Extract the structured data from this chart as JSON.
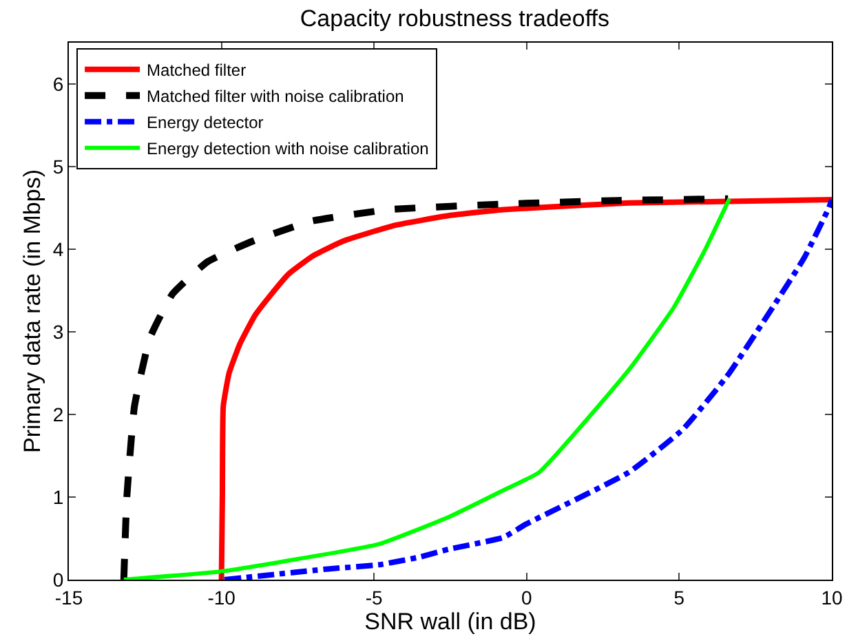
{
  "chart_data": {
    "type": "line",
    "title": "Capacity robustness tradeoffs",
    "xlabel": "SNR wall (in dB)",
    "ylabel": "Primary data rate (in Mbps)",
    "xlim": [
      -15,
      10
    ],
    "xticks": [
      -15,
      -10,
      -5,
      0,
      5,
      10
    ],
    "ylim": [
      0,
      6.5
    ],
    "yticks": [
      0,
      1,
      2,
      3,
      4,
      5,
      6
    ],
    "legend": "top left",
    "series": [
      {
        "name": "Matched filter",
        "color": "#ff0000",
        "line_style": "solid",
        "x": [
          -10,
          -9.97,
          -9.94,
          -9.75,
          -9.4,
          -8.9,
          -8.4,
          -7.8,
          -7.0,
          -6.0,
          -4.3,
          -2.5,
          -0.77,
          3.35,
          10
        ],
        "values": [
          0,
          1.0,
          2.1,
          2.5,
          2.85,
          3.2,
          3.44,
          3.7,
          3.92,
          4.1,
          4.29,
          4.41,
          4.48,
          4.56,
          4.6
        ]
      },
      {
        "name": "Matched filter with noise calibration",
        "color": "#000000",
        "line_style": "dashed",
        "x": [
          -13.2,
          -13.1,
          -12.85,
          -12.35,
          -11.6,
          -10.45,
          -8.96,
          -7.05,
          -4.5,
          -0.5,
          3.0,
          6.6
        ],
        "values": [
          0,
          1.0,
          2.1,
          2.92,
          3.46,
          3.85,
          4.1,
          4.34,
          4.48,
          4.55,
          4.59,
          4.61
        ]
      },
      {
        "name": "Energy detector",
        "color": "#0000ff",
        "line_style": "dashdot",
        "x": [
          -9.9,
          -6.5,
          -4.84,
          -3.55,
          -2.54,
          -0.77,
          -0.03,
          3.35,
          5.12,
          6.6,
          8.07,
          9.1,
          9.9,
          10
        ],
        "values": [
          0,
          0.13,
          0.18,
          0.27,
          0.37,
          0.51,
          0.67,
          1.3,
          1.82,
          2.48,
          3.3,
          3.9,
          4.5,
          4.6
        ]
      },
      {
        "name": "Energy detection with noise calibration",
        "color": "#00ff00",
        "line_style": "solid",
        "x": [
          -13.2,
          -10.0,
          -7.5,
          -4.84,
          -2.54,
          -0.77,
          0.41,
          3.35,
          4.83,
          5.87,
          6.64
        ],
        "values": [
          0,
          0.1,
          0.25,
          0.43,
          0.76,
          1.08,
          1.3,
          2.54,
          3.3,
          4.01,
          4.61
        ]
      }
    ]
  }
}
